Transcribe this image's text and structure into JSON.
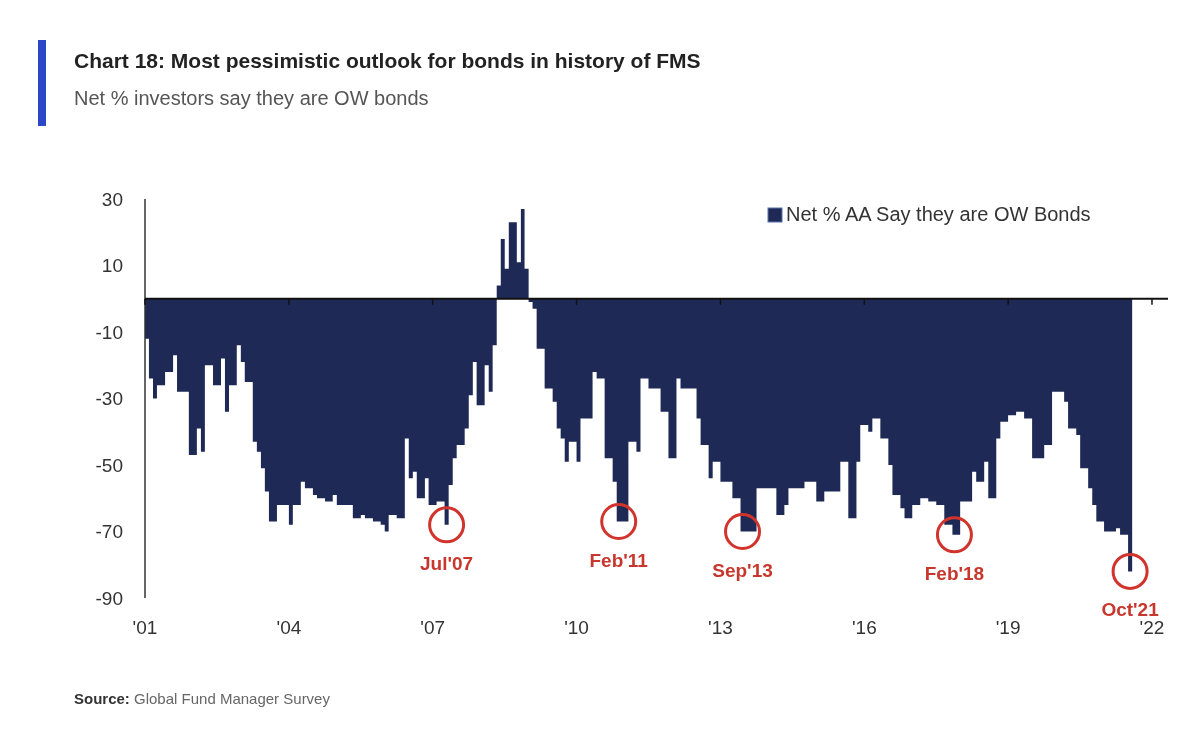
{
  "chart_data": {
    "type": "area",
    "title": "Chart 18: Most pessimistic outlook for bonds in history of FMS",
    "subtitle": "Net % investors say they are OW bonds",
    "x": [
      "2001-04",
      "2001-05",
      "2001-06",
      "2001-07",
      "2001-09",
      "2001-11",
      "2001-12",
      "2002-03",
      "2002-05",
      "2002-06",
      "2002-07",
      "2002-09",
      "2002-11",
      "2002-12",
      "2003-01",
      "2003-03",
      "2003-04",
      "2003-05",
      "2003-07",
      "2003-08",
      "2003-09",
      "2003-10",
      "2003-11",
      "2004-01",
      "2004-04",
      "2004-05",
      "2004-07",
      "2004-08",
      "2004-10",
      "2004-11",
      "2005-01",
      "2005-03",
      "2005-04",
      "2005-08",
      "2005-10",
      "2005-11",
      "2006-01",
      "2006-03",
      "2006-04",
      "2006-05",
      "2006-07",
      "2006-09",
      "2006-10",
      "2006-11",
      "2006-12",
      "2007-02",
      "2007-03",
      "2007-05",
      "2007-07",
      "2007-08",
      "2007-09",
      "2007-10",
      "2007-12",
      "2008-01",
      "2008-02",
      "2008-03",
      "2008-05",
      "2008-06",
      "2008-07",
      "2008-08",
      "2008-09",
      "2008-10",
      "2008-11",
      "2009-01",
      "2009-02",
      "2009-03",
      "2009-04",
      "2009-05",
      "2009-06",
      "2009-08",
      "2009-10",
      "2009-11",
      "2009-12",
      "2010-01",
      "2010-02",
      "2010-04",
      "2010-05",
      "2010-08",
      "2010-09",
      "2010-11",
      "2011-01",
      "2011-02",
      "2011-05",
      "2011-07",
      "2011-08",
      "2011-10",
      "2011-12",
      "2012-01",
      "2012-03",
      "2012-05",
      "2012-06",
      "2012-08",
      "2012-10",
      "2012-11",
      "2013-01",
      "2013-02",
      "2013-04",
      "2013-07",
      "2013-09",
      "2014-01",
      "2014-03",
      "2014-06",
      "2014-08",
      "2014-09",
      "2014-11",
      "2015-01",
      "2015-04",
      "2015-06",
      "2015-10",
      "2015-12",
      "2016-02",
      "2016-03",
      "2016-05",
      "2016-06",
      "2016-08",
      "2016-10",
      "2016-11",
      "2017-01",
      "2017-02",
      "2017-04",
      "2017-06",
      "2017-08",
      "2017-10",
      "2017-12",
      "2018-02",
      "2018-04",
      "2018-07",
      "2018-08",
      "2018-10",
      "2018-11",
      "2019-01",
      "2019-02",
      "2019-04",
      "2019-06",
      "2019-08",
      "2019-10",
      "2020-01",
      "2020-03",
      "2020-06",
      "2020-07",
      "2020-09",
      "2020-10",
      "2020-12",
      "2021-01",
      "2021-02",
      "2021-04",
      "2021-07",
      "2021-08",
      "2021-10"
    ],
    "series": [
      {
        "name": "Net % AA Say they are OW Bonds",
        "color": "#1e2a55",
        "values": [
          -12,
          -24,
          -30,
          -26,
          -22,
          -17,
          -28,
          -47,
          -39,
          -46,
          -20,
          -26,
          -18,
          -34,
          -26,
          -14,
          -19,
          -25,
          -43,
          -46,
          -51,
          -58,
          -67,
          -62,
          -68,
          -62,
          -55,
          -57,
          -59,
          -60,
          -61,
          -59,
          -62,
          -66,
          -65,
          -66,
          -67,
          -68,
          -70,
          -65,
          -66,
          -42,
          -54,
          -52,
          -60,
          -54,
          -62,
          -61,
          -68,
          -56,
          -48,
          -44,
          -39,
          -29,
          -19,
          -32,
          -20,
          -28,
          -14,
          4,
          18,
          9,
          23,
          11,
          27,
          9,
          -1,
          -3,
          -15,
          -27,
          -31,
          -39,
          -42,
          -49,
          -43,
          -49,
          -36,
          -22,
          -24,
          -48,
          -55,
          -67,
          -43,
          -46,
          -24,
          -27,
          -27,
          -34,
          -48,
          -24,
          -27,
          -27,
          -36,
          -44,
          -54,
          -49,
          -55,
          -60,
          -70,
          -57,
          -57,
          -65,
          -62,
          -57,
          -57,
          -55,
          -61,
          -58,
          -49,
          -66,
          -49,
          -38,
          -40,
          -36,
          -42,
          -50,
          -59,
          -63,
          -66,
          -62,
          -60,
          -61,
          -62,
          -68,
          -71,
          -61,
          -52,
          -55,
          -49,
          -60,
          -42,
          -37,
          -35,
          -34,
          -36,
          -48,
          -44,
          -28,
          -31,
          -39,
          -41,
          -51,
          -57,
          -62,
          -67,
          -70,
          -69,
          -71,
          -82
        ]
      }
    ],
    "xlim": [
      "2001-04",
      "2022-08"
    ],
    "xticks": [
      {
        "value": "2001-04",
        "label": "'01"
      },
      {
        "value": "2004-04",
        "label": "'04"
      },
      {
        "value": "2007-04",
        "label": "'07"
      },
      {
        "value": "2010-04",
        "label": "'10"
      },
      {
        "value": "2013-04",
        "label": "'13"
      },
      {
        "value": "2016-04",
        "label": "'16"
      },
      {
        "value": "2019-04",
        "label": "'19"
      },
      {
        "value": "2022-04",
        "label": "'22"
      }
    ],
    "ylim": [
      -90,
      30
    ],
    "yticks": [
      30,
      10,
      -10,
      -30,
      -50,
      -70,
      -90
    ],
    "grid": false,
    "legend": "top right",
    "annotations": [
      {
        "text": "Jul'07",
        "x": "2007-07",
        "y": -68
      },
      {
        "text": "Feb'11",
        "x": "2011-02",
        "y": -67
      },
      {
        "text": "Sep'13",
        "x": "2013-09",
        "y": -70
      },
      {
        "text": "Feb'18",
        "x": "2018-02",
        "y": -71
      },
      {
        "text": "Oct'21",
        "x": "2021-10",
        "y": -82
      },
      "Source: Global Fund Manager Survey"
    ]
  }
}
